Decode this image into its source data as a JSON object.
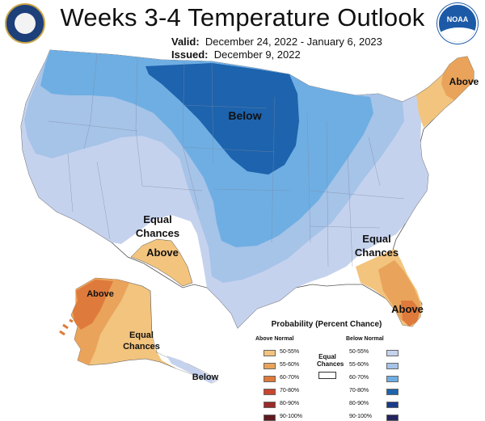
{
  "title": "Weeks 3-4 Temperature Outlook",
  "valid_label": "Valid:",
  "valid_value": "December 24, 2022 - January 6, 2023",
  "issued_label": "Issued:",
  "issued_value": "December 9, 2022",
  "logo_noaa": "NOAA",
  "region_labels": {
    "below_main": "Below",
    "above_ne": "Above",
    "equal_sw_1": "Equal",
    "equal_sw_2": "Chances",
    "above_tx": "Above",
    "equal_se_1": "Equal",
    "equal_se_2": "Chances",
    "above_fl": "Above",
    "above_ak": "Above",
    "equal_ak_1": "Equal",
    "equal_ak_2": "Chances",
    "below_ak": "Below"
  },
  "legend": {
    "title": "Probability (Percent Chance)",
    "above_title": "Above Normal",
    "below_title": "Below Normal",
    "equal_line1": "Equal",
    "equal_line2": "Chances",
    "above": [
      {
        "label": "50-55%",
        "color": "#f2c47e"
      },
      {
        "label": "55-60%",
        "color": "#e9a35a"
      },
      {
        "label": "60-70%",
        "color": "#de7a3b"
      },
      {
        "label": "70-80%",
        "color": "#c8452e"
      },
      {
        "label": "80-90%",
        "color": "#9b2a2a"
      },
      {
        "label": "90-100%",
        "color": "#5e1a1e"
      }
    ],
    "below": [
      {
        "label": "50-55%",
        "color": "#c5d2ee"
      },
      {
        "label": "55-60%",
        "color": "#a6c3e8"
      },
      {
        "label": "60-70%",
        "color": "#6eaee3"
      },
      {
        "label": "70-80%",
        "color": "#1d63ad"
      },
      {
        "label": "80-90%",
        "color": "#1a3a8a"
      },
      {
        "label": "90-100%",
        "color": "#25245f"
      }
    ]
  }
}
